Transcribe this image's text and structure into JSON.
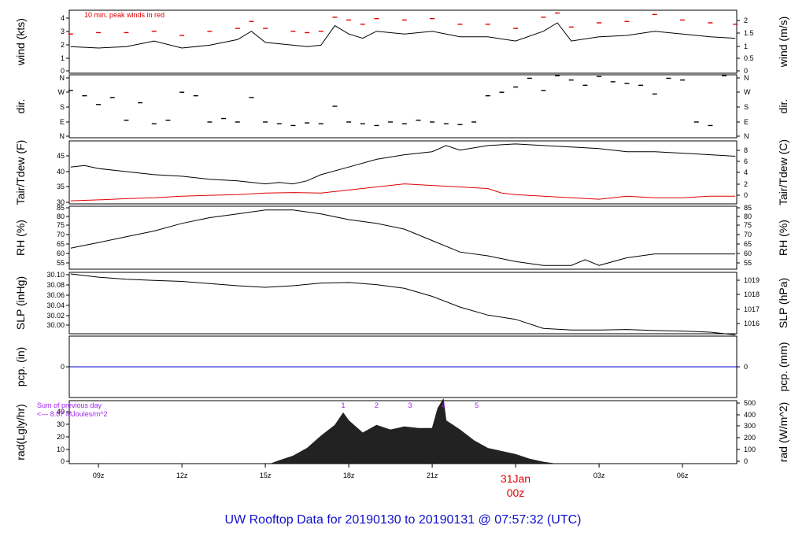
{
  "figure": {
    "title": "UW Rooftop Data for 20190130  to  20190131 @ 07:57:32  (UTC)",
    "title_color": "#1010cc",
    "wind_note": "10 min. peak winds in red",
    "rad_note_line1": "Sum of previous day",
    "rad_note_line2": "<--- 8.87 MJoules/m^2",
    "accent_red": "#e00000",
    "purple": "#a020f0",
    "date_label_day": "31Jan",
    "date_label_hour": "00z"
  },
  "x_ticks": [
    "09z",
    "12z",
    "15z",
    "18z",
    "21z",
    "00z",
    "03z",
    "06z"
  ],
  "panels": [
    {
      "key": "wind",
      "ylabel_left": "wind (kts)",
      "ylabel_right": "wind (m/s)",
      "left_ticks": [
        "0",
        "1",
        "2",
        "3",
        "4"
      ],
      "right_ticks": [
        "0",
        "0.5",
        "1",
        "1.5",
        "2"
      ]
    },
    {
      "key": "dir",
      "ylabel_left": "dir.",
      "ylabel_right": "dir.",
      "left_ticks": [
        "N",
        "E",
        "S",
        "W",
        "N"
      ],
      "right_ticks": [
        "N",
        "E",
        "S",
        "W",
        "N"
      ]
    },
    {
      "key": "temp",
      "ylabel_left": "Tair/Tdew (F)",
      "ylabel_right": "Tair/Tdew (C)",
      "left_ticks": [
        "30",
        "35",
        "40",
        "45"
      ],
      "right_ticks": [
        "0",
        "2",
        "4",
        "6",
        "8"
      ]
    },
    {
      "key": "rh",
      "ylabel_left": "RH (%)",
      "ylabel_right": "RH (%)",
      "left_ticks": [
        "55",
        "60",
        "65",
        "70",
        "75",
        "80",
        "85"
      ],
      "right_ticks": [
        "55",
        "60",
        "65",
        "70",
        "75",
        "80",
        "85"
      ]
    },
    {
      "key": "slp",
      "ylabel_left": "SLP (inHg)",
      "ylabel_right": "SLP (hPa)",
      "left_ticks": [
        "30.00",
        "30.02",
        "30.04",
        "30.06",
        "30.08",
        "30.10"
      ],
      "right_ticks": [
        "1016",
        "1017",
        "1018",
        "1019"
      ]
    },
    {
      "key": "pcp",
      "ylabel_left": "pcp. (in)",
      "ylabel_right": "pcp. (mm)",
      "left_ticks": [
        "0"
      ],
      "right_ticks": [
        "0"
      ]
    },
    {
      "key": "rad",
      "ylabel_left": "rad(Lgly/hr)",
      "ylabel_right": "rad (W/m^2)",
      "left_ticks": [
        "0",
        "10",
        "20",
        "30",
        "40"
      ],
      "right_ticks": [
        "0",
        "100",
        "200",
        "300",
        "400",
        "500"
      ]
    }
  ],
  "chart_data": [
    {
      "type": "line",
      "panel": "wind",
      "xunit": "hours UTC since 20190130 00z",
      "xlim": [
        7.95,
        31.95
      ],
      "ylim": [
        0,
        4.5
      ],
      "series": [
        {
          "key": "mean",
          "color": "#000000",
          "x": [
            8,
            9,
            10,
            11,
            12,
            13,
            14,
            14.5,
            15,
            16,
            16.5,
            17,
            17.5,
            18,
            18.5,
            19,
            20,
            21,
            22,
            23,
            24,
            25,
            25.5,
            26,
            27,
            28,
            29,
            30,
            31,
            31.9
          ],
          "y": [
            1.9,
            1.8,
            1.9,
            2.3,
            1.8,
            2.0,
            2.4,
            3.0,
            2.2,
            2.0,
            1.9,
            2.0,
            3.4,
            2.8,
            2.5,
            3.0,
            2.8,
            3.0,
            2.6,
            2.6,
            2.3,
            3.0,
            3.6,
            2.3,
            2.6,
            2.7,
            3.0,
            2.8,
            2.6,
            2.5
          ]
        },
        {
          "key": "peak",
          "color": "#e00000",
          "x": [
            8,
            9,
            10,
            11,
            12,
            13,
            14,
            14.5,
            15,
            16,
            16.5,
            17,
            17.5,
            18,
            18.5,
            19,
            20,
            21,
            22,
            23,
            24,
            25,
            25.5,
            26,
            27,
            28,
            29,
            30,
            31,
            31.9
          ],
          "y": [
            2.8,
            2.9,
            2.9,
            3.0,
            2.7,
            3.0,
            3.2,
            3.7,
            3.2,
            3.0,
            2.9,
            3.0,
            4.0,
            3.8,
            3.5,
            3.9,
            3.8,
            3.9,
            3.5,
            3.5,
            3.2,
            4.0,
            4.3,
            3.3,
            3.6,
            3.7,
            4.2,
            3.8,
            3.6,
            3.5
          ]
        }
      ]
    },
    {
      "type": "scatter",
      "panel": "dir",
      "xlim": [
        7.95,
        31.95
      ],
      "ylim": [
        0,
        360
      ],
      "y_tick_values": [
        0,
        90,
        180,
        270,
        360
      ],
      "series": [
        {
          "key": "direction",
          "color": "#000000",
          "x": [
            8,
            8.5,
            9,
            9.5,
            10,
            10.5,
            11,
            11.5,
            12,
            12.5,
            13,
            13.5,
            14,
            14.5,
            15,
            15.5,
            16,
            16.5,
            17,
            17.5,
            18,
            18.5,
            19,
            19.5,
            20,
            20.5,
            21,
            21.5,
            22,
            22.5,
            23,
            23.5,
            24,
            24.5,
            25,
            25.5,
            26,
            26.5,
            27,
            27.5,
            28,
            28.5,
            29,
            29.5,
            30,
            30.5,
            31,
            31.5
          ],
          "y": [
            270,
            240,
            190,
            230,
            100,
            200,
            80,
            100,
            260,
            240,
            90,
            110,
            90,
            230,
            90,
            80,
            70,
            85,
            80,
            180,
            90,
            80,
            70,
            90,
            80,
            100,
            90,
            80,
            75,
            90,
            240,
            260,
            290,
            340,
            270,
            355,
            330,
            300,
            350,
            320,
            310,
            300,
            250,
            340,
            330,
            90,
            70,
            355
          ]
        }
      ]
    },
    {
      "type": "line",
      "panel": "temp",
      "xlim": [
        7.95,
        31.95
      ],
      "ylim": [
        29.5,
        50
      ],
      "series": [
        {
          "key": "tair",
          "color": "#000000",
          "x": [
            8,
            8.5,
            9,
            10,
            11,
            12,
            13,
            14,
            15,
            15.5,
            16,
            16.5,
            17,
            18,
            19,
            20,
            21,
            21.5,
            22,
            23,
            24,
            25,
            26,
            27,
            28,
            29,
            30,
            31,
            31.9
          ],
          "y": [
            41.5,
            42.0,
            41.0,
            40.0,
            39.0,
            38.5,
            37.5,
            37.0,
            36.0,
            36.5,
            36.0,
            37.0,
            39.0,
            41.5,
            44.0,
            45.5,
            46.5,
            48.5,
            47.0,
            48.5,
            49.0,
            48.5,
            48.0,
            47.5,
            46.5,
            46.5,
            46.0,
            45.5,
            45.0
          ]
        },
        {
          "key": "tdew",
          "color": "#e00000",
          "x": [
            8,
            9,
            10,
            11,
            12,
            13,
            14,
            15,
            16,
            17,
            18,
            19,
            20,
            21,
            22,
            23,
            23.5,
            24,
            25,
            26,
            27,
            28,
            29,
            30,
            31,
            31.9
          ],
          "y": [
            30.5,
            30.8,
            31.2,
            31.5,
            32.0,
            32.3,
            32.5,
            33.0,
            33.2,
            33.0,
            34.0,
            35.0,
            36.0,
            35.5,
            35.0,
            34.5,
            33.0,
            32.5,
            32.0,
            31.5,
            31.0,
            32.0,
            31.5,
            31.5,
            32.0,
            32.0
          ]
        }
      ]
    },
    {
      "type": "line",
      "panel": "rh",
      "xlim": [
        7.95,
        31.95
      ],
      "ylim": [
        53,
        86
      ],
      "series": [
        {
          "key": "rh",
          "color": "#000000",
          "x": [
            8,
            9,
            10,
            11,
            12,
            13,
            14,
            15,
            16,
            17,
            18,
            19,
            20,
            21,
            22,
            23,
            24,
            25,
            26,
            26.5,
            27,
            28,
            29,
            30,
            31,
            31.9
          ],
          "y": [
            64,
            67,
            70,
            73,
            77,
            80,
            82,
            84,
            84,
            82,
            79,
            77,
            74,
            68,
            62,
            60,
            57,
            55,
            55,
            58,
            55,
            59,
            61,
            61,
            61,
            61
          ]
        }
      ]
    },
    {
      "type": "line",
      "panel": "slp",
      "xlim": [
        7.95,
        31.95
      ],
      "ylim": [
        29.99,
        30.105
      ],
      "series": [
        {
          "key": "slp",
          "color": "#000000",
          "x": [
            8,
            9,
            10,
            11,
            12,
            13,
            14,
            15,
            16,
            17,
            18,
            19,
            20,
            21,
            22,
            23,
            24,
            25,
            26,
            27,
            28,
            29,
            30,
            31,
            31.9
          ],
          "y": [
            30.102,
            30.096,
            30.092,
            30.09,
            30.088,
            30.084,
            30.08,
            30.077,
            30.08,
            30.085,
            30.086,
            30.082,
            30.075,
            30.06,
            30.04,
            30.025,
            30.017,
            30.0,
            29.997,
            29.997,
            29.998,
            29.996,
            29.995,
            29.993,
            29.988
          ]
        }
      ]
    },
    {
      "type": "line",
      "panel": "pcp",
      "xlim": [
        7.95,
        31.95
      ],
      "ylim": [
        -1,
        1
      ],
      "series": [
        {
          "key": "pcp",
          "color": "#0000cc",
          "x": [
            7.95,
            31.95
          ],
          "y": [
            0,
            0
          ]
        }
      ]
    },
    {
      "type": "area",
      "panel": "rad",
      "xlim": [
        7.95,
        31.95
      ],
      "ylim": [
        0,
        41
      ],
      "series": [
        {
          "key": "rad",
          "color": "#222222",
          "x": [
            15.2,
            15.5,
            16,
            16.5,
            17,
            17.5,
            17.8,
            18,
            18.5,
            19,
            19.5,
            20,
            20.5,
            21,
            21.2,
            21.4,
            21.5,
            22,
            22.5,
            23,
            23.5,
            24,
            24.5,
            25,
            25.4
          ],
          "y": [
            0,
            2,
            5,
            10,
            18,
            25,
            33,
            28,
            20,
            25,
            22,
            24,
            23,
            23,
            36,
            42,
            28,
            22,
            15,
            10,
            8,
            6,
            3,
            1,
            0
          ]
        }
      ],
      "markers": {
        "labels": [
          "1",
          "2",
          "3",
          "4",
          "5"
        ],
        "x": [
          17.8,
          19.0,
          20.2,
          21.4,
          22.6
        ]
      }
    }
  ]
}
